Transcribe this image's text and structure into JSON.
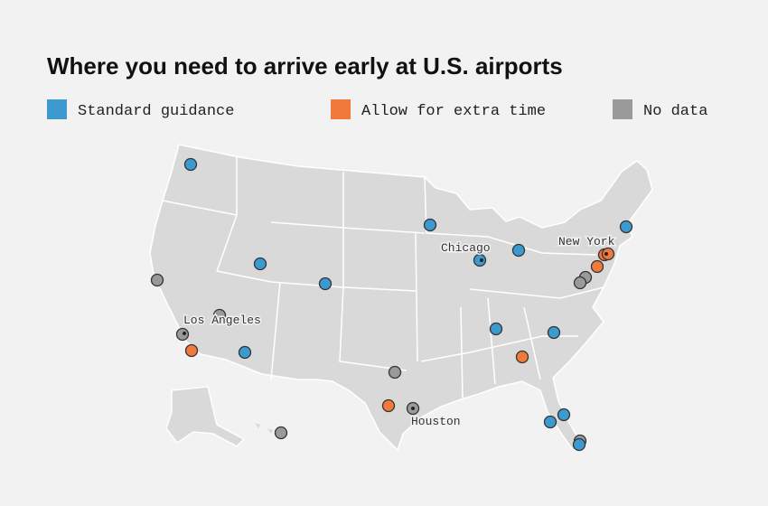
{
  "header": {
    "title": "Where you need to arrive early at U.S. airports"
  },
  "legend": [
    {
      "label": "Standard guidance",
      "color": "#3d9ad1"
    },
    {
      "label": "Allow for extra time",
      "color": "#f07a3c"
    },
    {
      "label": "No data",
      "color": "#9a9a9a"
    }
  ],
  "city_labels": [
    "Chicago",
    "New York",
    "Los Angeles",
    "Houston"
  ]
}
